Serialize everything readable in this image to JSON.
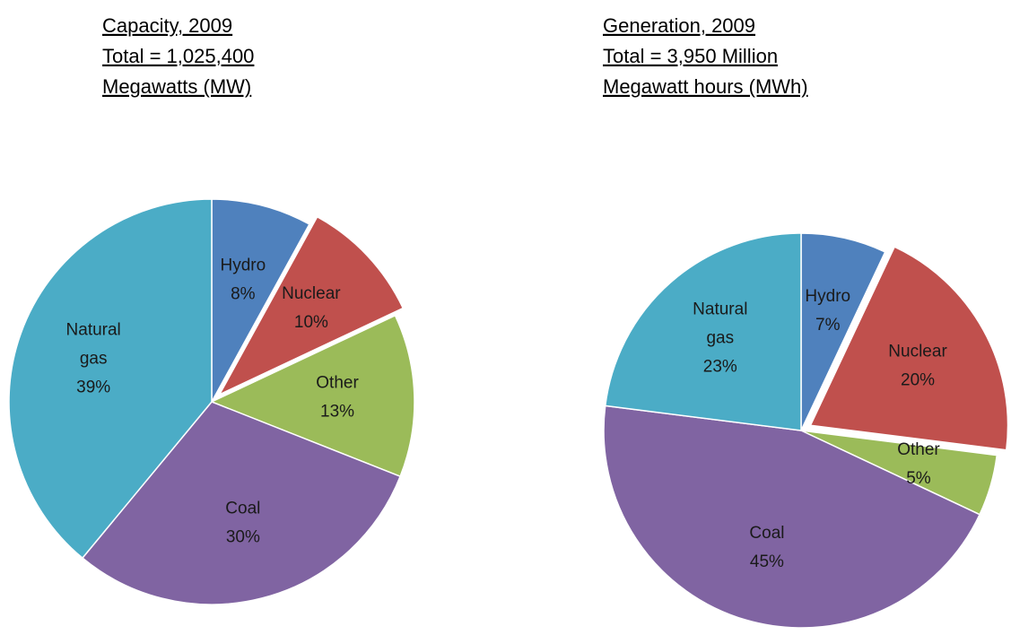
{
  "chart_data": [
    {
      "type": "pie",
      "title_lines": [
        "Capacity, 2009",
        "Total = 1,025,400",
        "Megawatts (MW)"
      ],
      "categories": [
        "Hydro",
        "Nuclear",
        "Other",
        "Coal",
        "Natural gas"
      ],
      "values": [
        8,
        10,
        13,
        30,
        39
      ],
      "value_labels": [
        "8%",
        "10%",
        "13%",
        "30%",
        "39%"
      ],
      "colors": [
        "#4f81bd",
        "#c0504d",
        "#9bbb59",
        "#8064a2",
        "#4bacc6"
      ],
      "exploded": [
        false,
        true,
        false,
        false,
        false
      ]
    },
    {
      "type": "pie",
      "title_lines": [
        "Generation, 2009",
        "Total = 3,950 Million",
        "Megawatt hours (MWh)"
      ],
      "categories": [
        "Hydro",
        "Nuclear",
        "Other",
        "Coal",
        "Natural gas"
      ],
      "values": [
        7,
        20,
        5,
        45,
        23
      ],
      "value_labels": [
        "7%",
        "20%",
        "5%",
        "45%",
        "23%"
      ],
      "colors": [
        "#4f81bd",
        "#c0504d",
        "#9bbb59",
        "#8064a2",
        "#4bacc6"
      ],
      "exploded": [
        false,
        true,
        false,
        false,
        false
      ]
    }
  ]
}
